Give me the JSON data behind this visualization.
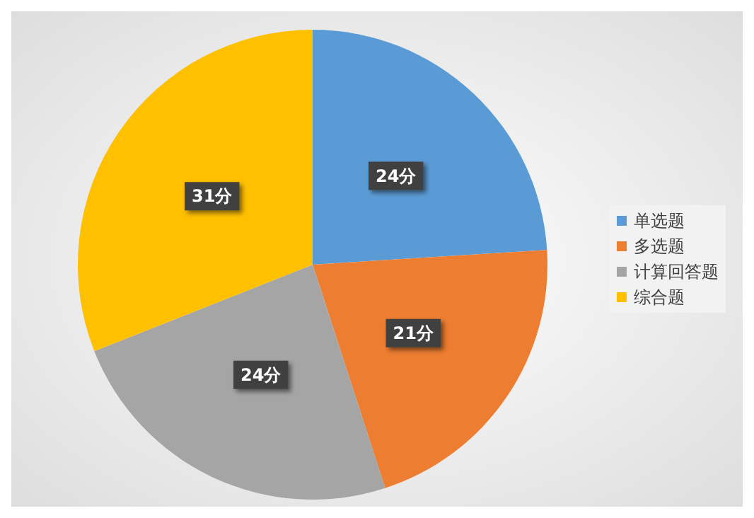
{
  "chart_data": {
    "type": "pie",
    "categories": [
      "单选题",
      "多选题",
      "计算回答题",
      "综合题"
    ],
    "values": [
      24,
      21,
      24,
      31
    ],
    "value_labels": [
      "24分",
      "21分",
      "24分",
      "31分"
    ],
    "colors": [
      "#5b9bd5",
      "#ed7d31",
      "#a5a5a5",
      "#ffc000"
    ],
    "legend": "right"
  }
}
